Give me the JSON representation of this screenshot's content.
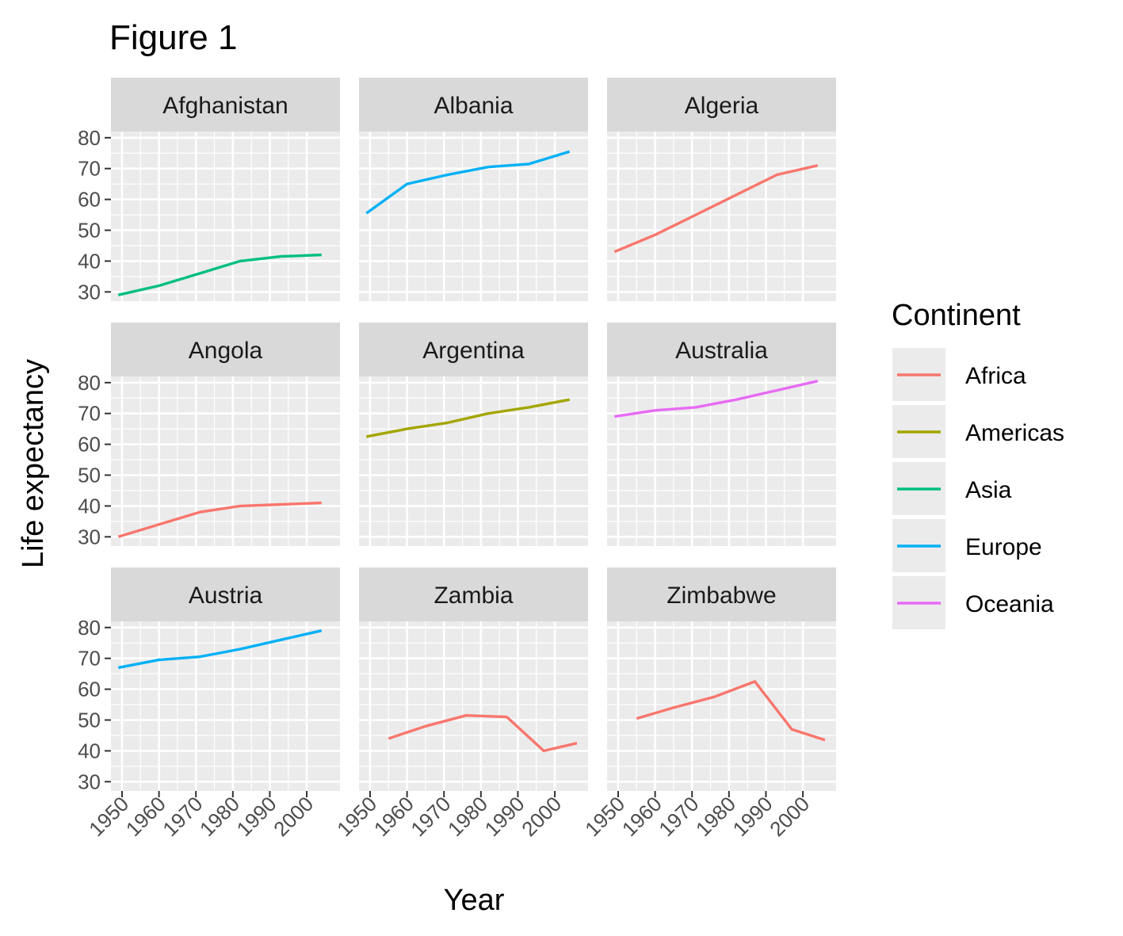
{
  "chart_data": {
    "type": "line",
    "title": "Figure 1",
    "xlabel": "Year",
    "ylabel": "Life expectancy",
    "xlim": [
      1947,
      2009
    ],
    "ylim": [
      27,
      82
    ],
    "x_ticks": [
      1950,
      1960,
      1970,
      1980,
      1990,
      2000
    ],
    "y_ticks": [
      30,
      40,
      50,
      60,
      70,
      80
    ],
    "facet_layout": "3x3",
    "grid": true,
    "legend": {
      "title": "Continent",
      "position": "right",
      "entries": [
        {
          "name": "Africa",
          "color": "#F8766D"
        },
        {
          "name": "Americas",
          "color": "#A3A500"
        },
        {
          "name": "Asia",
          "color": "#00BF7D"
        },
        {
          "name": "Europe",
          "color": "#00B0F6"
        },
        {
          "name": "Oceania",
          "color": "#E76BF3"
        }
      ]
    },
    "panels": [
      {
        "country": "Afghanistan",
        "continent": "Asia",
        "x": [
          1949,
          1960,
          1971,
          1982,
          1993,
          2004
        ],
        "y": [
          29,
          32,
          36,
          40,
          41.5,
          42
        ]
      },
      {
        "country": "Albania",
        "continent": "Europe",
        "x": [
          1949,
          1960,
          1971,
          1982,
          1993,
          2004
        ],
        "y": [
          55.5,
          65,
          68,
          70.5,
          71.5,
          75.5
        ]
      },
      {
        "country": "Algeria",
        "continent": "Africa",
        "x": [
          1949,
          1960,
          1971,
          1982,
          1993,
          2004
        ],
        "y": [
          43,
          48.5,
          55,
          61.5,
          68,
          71
        ]
      },
      {
        "country": "Angola",
        "continent": "Africa",
        "x": [
          1949,
          1960,
          1971,
          1982,
          1993,
          2004
        ],
        "y": [
          30,
          34,
          38,
          40,
          40.5,
          41
        ]
      },
      {
        "country": "Argentina",
        "continent": "Americas",
        "x": [
          1949,
          1960,
          1971,
          1982,
          1993,
          2004
        ],
        "y": [
          62.5,
          65,
          67,
          70,
          72,
          74.5
        ]
      },
      {
        "country": "Australia",
        "continent": "Oceania",
        "x": [
          1949,
          1960,
          1971,
          1982,
          1993,
          2004
        ],
        "y": [
          69,
          71,
          72,
          74.5,
          77.5,
          80.5
        ]
      },
      {
        "country": "Austria",
        "continent": "Europe",
        "x": [
          1949,
          1960,
          1971,
          1982,
          1993,
          2004
        ],
        "y": [
          67,
          69.5,
          70.5,
          73,
          76,
          79
        ]
      },
      {
        "country": "Zambia",
        "continent": "Africa",
        "x": [
          1955,
          1965,
          1976,
          1987,
          1997,
          2006
        ],
        "y": [
          44,
          48,
          51.5,
          51,
          40,
          42.5
        ]
      },
      {
        "country": "Zimbabwe",
        "continent": "Africa",
        "x": [
          1955,
          1965,
          1976,
          1987,
          1997,
          2006
        ],
        "y": [
          50.5,
          54,
          57.5,
          62.5,
          47,
          43.5
        ]
      }
    ]
  }
}
